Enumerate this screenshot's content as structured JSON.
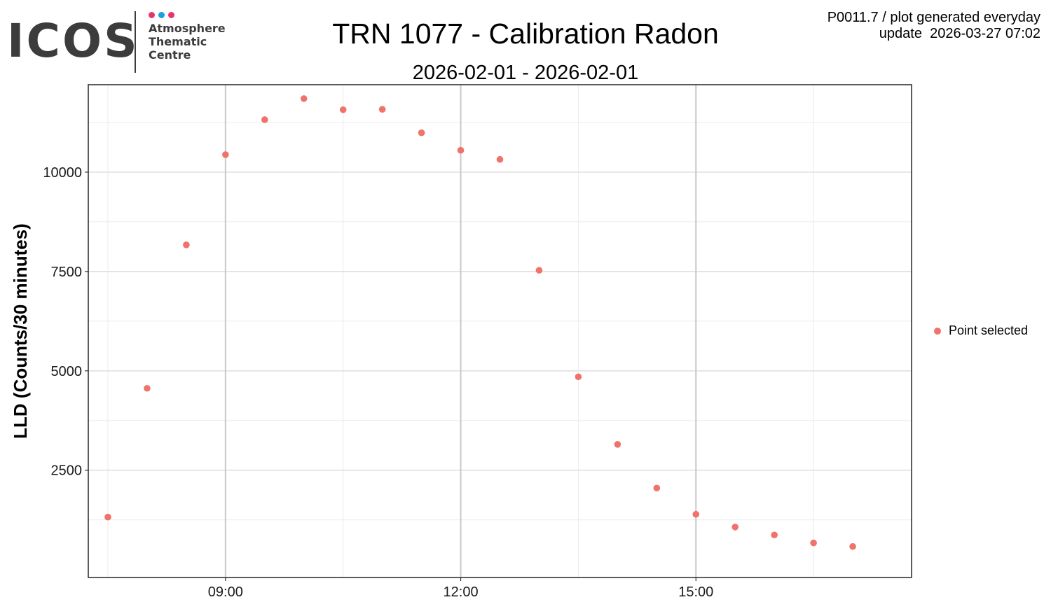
{
  "logo": {
    "word": "ICOS",
    "lines": [
      "Atmosphere",
      "Thematic",
      "Centre"
    ],
    "dot_colors": [
      "#e8336e",
      "#1a9fe0",
      "#e8336e"
    ]
  },
  "header": {
    "title": "TRN 1077 - Calibration Radon",
    "subtitle": "2026-02-01 - 2026-02-01",
    "meta_line1": "P0011.7 / plot generated everyday",
    "meta_line2": "update  2026-03-27 07:02"
  },
  "chart_data": {
    "type": "scatter",
    "title": "TRN 1077 - Calibration Radon",
    "subtitle": "2026-02-01 - 2026-02-01",
    "xlabel": "",
    "ylabel": "LLD (Counts/30 minutes)",
    "x_ticks": [
      "09:00",
      "12:00",
      "15:00"
    ],
    "y_ticks": [
      2500,
      5000,
      7500,
      10000
    ],
    "xlim": [
      "07:15",
      "17:45"
    ],
    "ylim": [
      -200,
      12200
    ],
    "grid": true,
    "legend_position": "right",
    "series": [
      {
        "name": "Point selected",
        "color": "#f0736b",
        "points": [
          {
            "x": "07:30",
            "y": 1320
          },
          {
            "x": "08:00",
            "y": 4560
          },
          {
            "x": "08:30",
            "y": 8170
          },
          {
            "x": "09:00",
            "y": 10440
          },
          {
            "x": "09:30",
            "y": 11320
          },
          {
            "x": "10:00",
            "y": 11850
          },
          {
            "x": "10:30",
            "y": 11570
          },
          {
            "x": "11:00",
            "y": 11580
          },
          {
            "x": "11:30",
            "y": 10990
          },
          {
            "x": "12:00",
            "y": 10550
          },
          {
            "x": "12:30",
            "y": 10320
          },
          {
            "x": "13:00",
            "y": 7530
          },
          {
            "x": "13:30",
            "y": 4850
          },
          {
            "x": "14:00",
            "y": 3150
          },
          {
            "x": "14:30",
            "y": 2050
          },
          {
            "x": "15:00",
            "y": 1390
          },
          {
            "x": "15:30",
            "y": 1070
          },
          {
            "x": "16:00",
            "y": 870
          },
          {
            "x": "16:30",
            "y": 670
          },
          {
            "x": "17:00",
            "y": 580
          }
        ]
      }
    ]
  }
}
